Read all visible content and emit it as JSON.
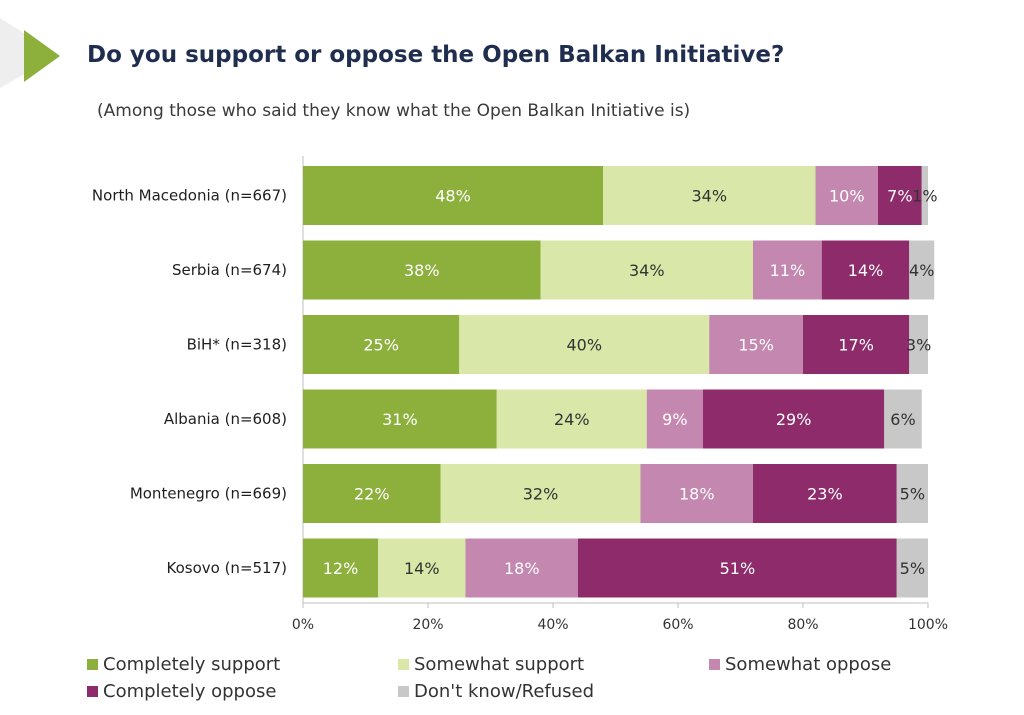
{
  "title": "Do you support or oppose the Open Balkan Initiative?",
  "subtitle": "(Among those who said they know what the Open Balkan Initiative is)",
  "chart_data": {
    "type": "bar",
    "orientation": "horizontal",
    "stacked": true,
    "categories": [
      "North Macedonia (n=667)",
      "Serbia (n=674)",
      "BiH* (n=318)",
      "Albania (n=608)",
      "Montenegro (n=669)",
      "Kosovo (n=517)"
    ],
    "series": [
      {
        "name": "Completely support",
        "color": "#8db03d",
        "label_color": "#ffffff",
        "values": [
          48,
          38,
          25,
          31,
          22,
          12
        ]
      },
      {
        "name": "Somewhat support",
        "color": "#d9e7a8",
        "label_color": "#333333",
        "values": [
          34,
          34,
          40,
          24,
          32,
          14
        ]
      },
      {
        "name": "Somewhat oppose",
        "color": "#c487b0",
        "label_color": "#ffffff",
        "values": [
          10,
          11,
          15,
          9,
          18,
          18
        ]
      },
      {
        "name": "Completely oppose",
        "color": "#8e2c6b",
        "label_color": "#ffffff",
        "values": [
          7,
          14,
          17,
          29,
          23,
          51
        ]
      },
      {
        "name": "Don't know/Refused",
        "color": "#c8c8c8",
        "label_color": "#333333",
        "values": [
          1,
          4,
          3,
          6,
          5,
          5
        ]
      }
    ],
    "x_ticks": [
      "0%",
      "20%",
      "40%",
      "60%",
      "80%",
      "100%"
    ],
    "xlim": [
      0,
      100
    ],
    "value_suffix": "%",
    "legend_position": "bottom",
    "grid": false
  }
}
